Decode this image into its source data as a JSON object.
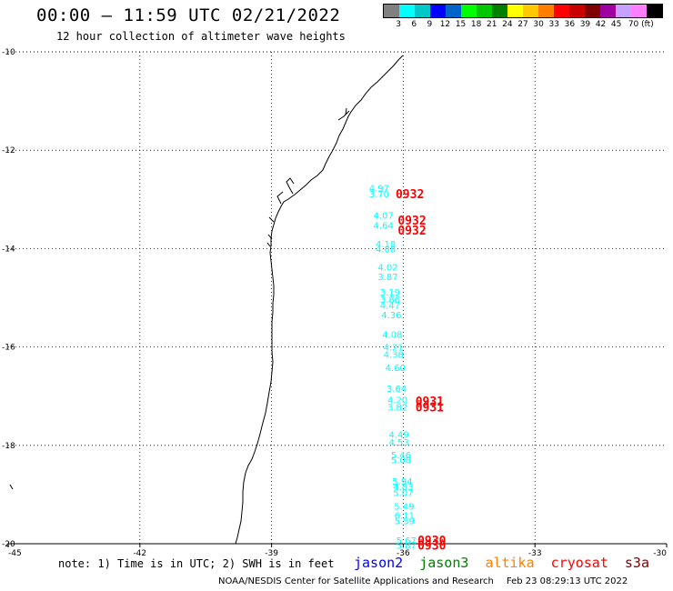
{
  "header": {
    "title": "00:00 – 11:59 UTC 02/21/2022",
    "subtitle": "12 hour collection of altimeter wave heights"
  },
  "legend": {
    "colors": [
      "#808080",
      "#00ffff",
      "#00c8c8",
      "#0000ff",
      "#0064c8",
      "#00ff00",
      "#00c800",
      "#008000",
      "#ffff00",
      "#ffc800",
      "#ff8000",
      "#ff0000",
      "#c80000",
      "#800000",
      "#a000a0",
      "#c8a0ff",
      "#ff80ff",
      "#000000"
    ],
    "ticks": [
      "3",
      "6",
      "9",
      "12",
      "15",
      "18",
      "21",
      "24",
      "27",
      "30",
      "33",
      "36",
      "39",
      "42",
      "45",
      "70 (ft)"
    ]
  },
  "map": {
    "lat_labels": [
      "-10",
      "-12",
      "-14",
      "-16",
      "-18",
      "-20"
    ],
    "lon_labels": [
      "-45",
      "-42",
      "-39",
      "-36",
      "-33",
      "-30"
    ],
    "observations": [
      {
        "text": "4.97",
        "lon": -36.55,
        "lat": -12.76,
        "color": "#00ffff"
      },
      {
        "text": "3.70",
        "lon": -36.55,
        "lat": -12.88,
        "color": "#00ffff"
      },
      {
        "text": "4.07",
        "lon": -36.45,
        "lat": -13.32,
        "color": "#00ffff"
      },
      {
        "text": "4.64",
        "lon": -36.45,
        "lat": -13.52,
        "color": "#00ffff"
      },
      {
        "text": "4.18",
        "lon": -36.4,
        "lat": -13.9,
        "color": "#00ffff"
      },
      {
        "text": "4.08",
        "lon": -36.4,
        "lat": -14.0,
        "color": "#00ffff"
      },
      {
        "text": "4.02",
        "lon": -36.35,
        "lat": -14.37,
        "color": "#00ffff"
      },
      {
        "text": "3.87",
        "lon": -36.35,
        "lat": -14.57,
        "color": "#00ffff"
      },
      {
        "text": "3.19",
        "lon": -36.3,
        "lat": -14.88,
        "color": "#00ffff"
      },
      {
        "text": "3.86",
        "lon": -36.3,
        "lat": -15.03,
        "color": "#00ffff"
      },
      {
        "text": "4.47",
        "lon": -36.3,
        "lat": -15.15,
        "color": "#00ffff"
      },
      {
        "text": "4.36",
        "lon": -36.27,
        "lat": -15.34,
        "color": "#00ffff"
      },
      {
        "text": "4.08",
        "lon": -36.25,
        "lat": -15.74,
        "color": "#00ffff"
      },
      {
        "text": "4.21",
        "lon": -36.22,
        "lat": -16.0,
        "color": "#00ffff"
      },
      {
        "text": "4.38",
        "lon": -36.22,
        "lat": -16.15,
        "color": "#00ffff"
      },
      {
        "text": "4.60",
        "lon": -36.18,
        "lat": -16.41,
        "color": "#00ffff"
      },
      {
        "text": "3.64",
        "lon": -36.15,
        "lat": -16.84,
        "color": "#00ffff"
      },
      {
        "text": "4.20",
        "lon": -36.13,
        "lat": -17.07,
        "color": "#00ffff"
      },
      {
        "text": "3.82",
        "lon": -36.13,
        "lat": -17.22,
        "color": "#00ffff"
      },
      {
        "text": "4.49",
        "lon": -36.1,
        "lat": -17.77,
        "color": "#00ffff"
      },
      {
        "text": "4.53",
        "lon": -36.1,
        "lat": -17.93,
        "color": "#00ffff"
      },
      {
        "text": "5.46",
        "lon": -36.05,
        "lat": -18.19,
        "color": "#00ffff"
      },
      {
        "text": "5.08",
        "lon": -36.05,
        "lat": -18.29,
        "color": "#00ffff"
      },
      {
        "text": "5.94",
        "lon": -36.02,
        "lat": -18.72,
        "color": "#00ffff"
      },
      {
        "text": "4.83",
        "lon": -36.0,
        "lat": -18.84,
        "color": "#00ffff"
      },
      {
        "text": "5.07",
        "lon": -36.0,
        "lat": -18.96,
        "color": "#00ffff"
      },
      {
        "text": "5.49",
        "lon": -35.98,
        "lat": -19.23,
        "color": "#00ffff"
      },
      {
        "text": "6.11",
        "lon": -35.97,
        "lat": -19.42,
        "color": "#00ffff"
      },
      {
        "text": "5.59",
        "lon": -35.97,
        "lat": -19.53,
        "color": "#00ffff"
      },
      {
        "text": "5.67",
        "lon": -35.93,
        "lat": -19.93,
        "color": "#00ffff"
      },
      {
        "text": "5.87",
        "lon": -35.93,
        "lat": -20.03,
        "color": "#00ffff"
      }
    ],
    "time_labels": [
      {
        "text": "0932",
        "lon": -35.85,
        "lat": -12.88,
        "color": "#ff0000"
      },
      {
        "text": "0932",
        "lon": -35.8,
        "lat": -13.42,
        "color": "#ff0000"
      },
      {
        "text": "0932",
        "lon": -35.8,
        "lat": -13.62,
        "color": "#ff0000"
      },
      {
        "text": "0931",
        "lon": -35.4,
        "lat": -17.1,
        "color": "#ff0000"
      },
      {
        "text": "0931",
        "lon": -35.4,
        "lat": -17.22,
        "color": "#ff0000"
      },
      {
        "text": "0930",
        "lon": -35.35,
        "lat": -19.93,
        "color": "#ff0000"
      },
      {
        "text": "0930",
        "lon": -35.35,
        "lat": -20.03,
        "color": "#ff0000"
      }
    ]
  },
  "footer": {
    "note": "note: 1) Time is in UTC; 2) SWH is in feet",
    "satellites": [
      {
        "name": "jason2",
        "color": "#0000ff"
      },
      {
        "name": "jason3",
        "color": "#008000"
      },
      {
        "name": "altika",
        "color": "#ff8000"
      },
      {
        "name": "cryosat",
        "color": "#ff0000"
      },
      {
        "name": "s3a",
        "color": "#800000"
      }
    ],
    "credit": "NOAA/NESDIS Center for Satellite Applications and Research",
    "timestamp": "Feb 23 08:29:13 UTC 2022"
  }
}
